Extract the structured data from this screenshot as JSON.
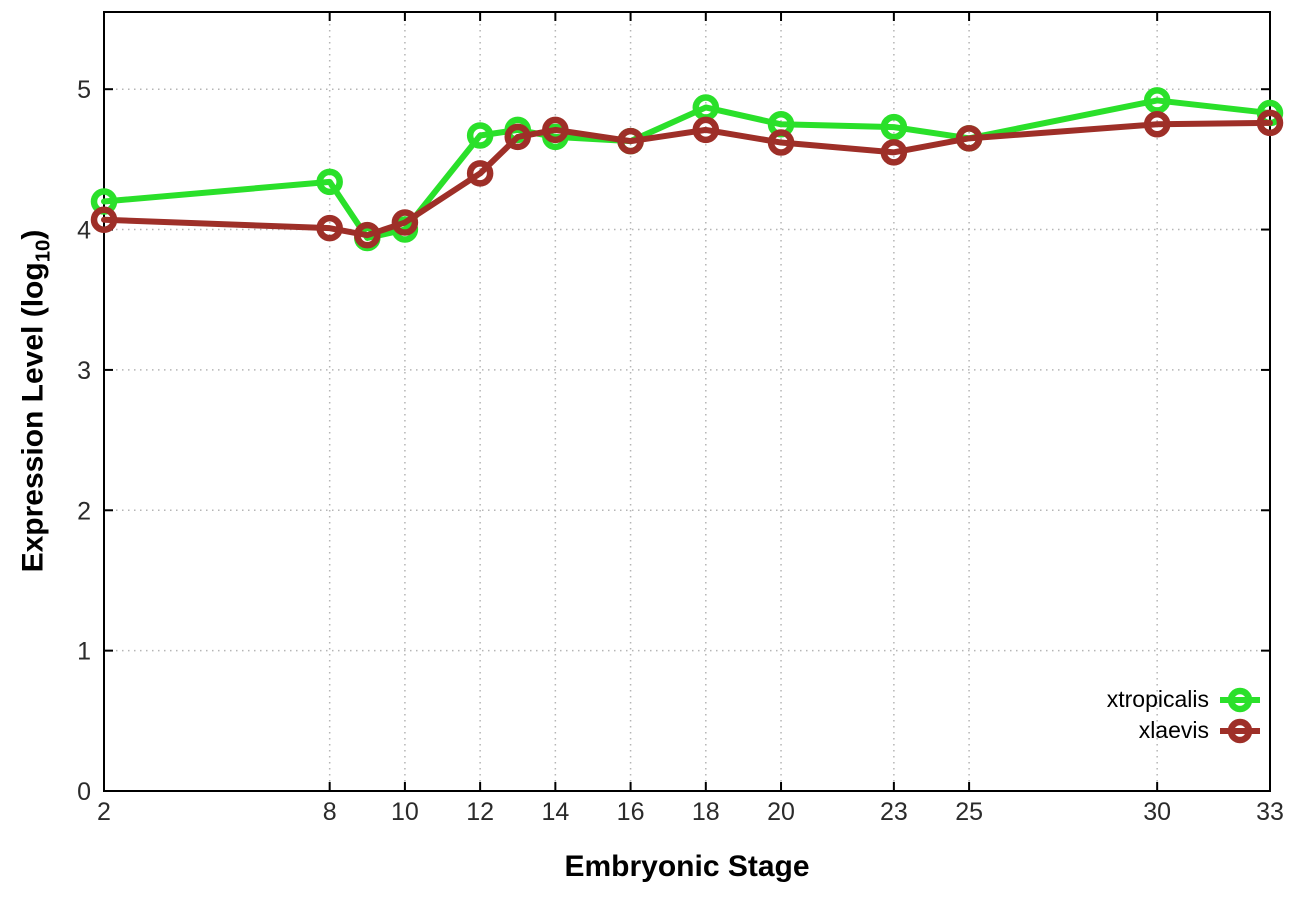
{
  "chart_data": {
    "type": "line",
    "title": "",
    "xlabel": "Embryonic Stage",
    "ylabel": "Expression Level (log10)",
    "ylabel_main": "Expression Level (log",
    "ylabel_sub": "10",
    "ylabel_suffix": ")",
    "x": [
      2,
      8,
      9,
      10,
      12,
      13,
      14,
      16,
      18,
      20,
      23,
      25,
      30,
      33
    ],
    "x_ticks": [
      2,
      8,
      10,
      12,
      14,
      16,
      18,
      20,
      23,
      25,
      30,
      33
    ],
    "y_ticks": [
      0,
      1,
      2,
      3,
      4,
      5
    ],
    "xlim": [
      2,
      33
    ],
    "ylim": [
      0,
      5.55
    ],
    "grid": true,
    "legend_position": "inside bottom-right",
    "series": [
      {
        "name": "xtropicalis",
        "color": "#2ae02a",
        "values": [
          4.2,
          4.34,
          3.94,
          4.0,
          4.67,
          4.71,
          4.66,
          4.63,
          4.87,
          4.75,
          4.73,
          4.65,
          4.92,
          4.83
        ]
      },
      {
        "name": "xlaevis",
        "color": "#9e2f28",
        "values": [
          4.07,
          4.01,
          3.96,
          4.05,
          4.4,
          4.66,
          4.71,
          4.63,
          4.71,
          4.62,
          4.55,
          4.65,
          4.75,
          4.76
        ]
      }
    ],
    "colors": {
      "grid": "#b5b5b5",
      "border": "#000000",
      "tick_text": "#2b2b2b",
      "background": "#ffffff"
    }
  }
}
